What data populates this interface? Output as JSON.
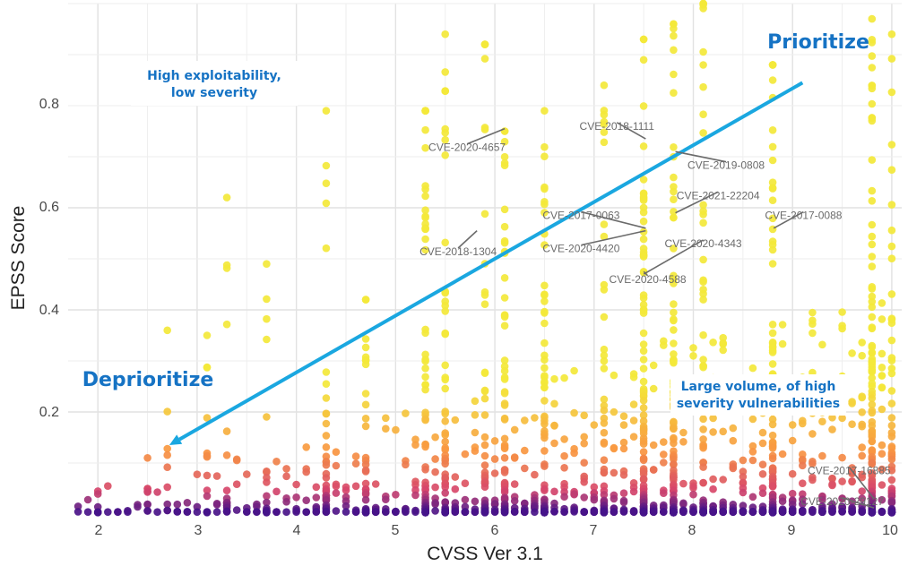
{
  "chart_data": {
    "type": "scatter",
    "xlabel": "CVSS Ver 3.1",
    "ylabel": "EPSS Score",
    "xlim": [
      1.7,
      10.1
    ],
    "ylim": [
      0,
      1.0
    ],
    "x_ticks": [
      "2",
      "3",
      "4",
      "5",
      "6",
      "7",
      "8",
      "9",
      "10"
    ],
    "y_ticks": [
      "0.2",
      "0.4",
      "0.6",
      "0.8"
    ],
    "grid": true,
    "colors": {
      "low": "#3b0f8c",
      "mid": "#d6456c",
      "upper": "#f89441",
      "high": "#f3e83a",
      "arrow": "#1aa7e0",
      "label": "#1673c4"
    },
    "regions": {
      "prioritize": "Prioritize",
      "deprioritize": "Deprioritize",
      "high_exploit_line1": "High exploitability,",
      "high_exploit_line2": "low severity",
      "large_volume_line1": "Large volume, of high",
      "large_volume_line2": "severity vulnerabilities"
    },
    "arrow": {
      "from": [
        9.1,
        0.845
      ],
      "to": [
        2.72,
        0.135
      ]
    },
    "annotations": [
      {
        "text": "CVE-2020-4657",
        "point": [
          6.1,
          0.755
        ],
        "label_at": [
          5.72,
          0.718
        ]
      },
      {
        "text": "CVE-2018-1111",
        "point": [
          7.52,
          0.735
        ],
        "label_at": [
          7.23,
          0.76
        ]
      },
      {
        "text": "CVE-2019-0808",
        "point": [
          7.82,
          0.71
        ],
        "label_at": [
          8.33,
          0.683
        ]
      },
      {
        "text": "CVE-2021-22204",
        "point": [
          7.82,
          0.59
        ],
        "label_at": [
          8.25,
          0.624
        ]
      },
      {
        "text": "CVE-2017-0063",
        "point": [
          7.52,
          0.56
        ],
        "label_at": [
          6.87,
          0.585
        ]
      },
      {
        "text": "CVE-2017-0088",
        "point": [
          8.81,
          0.56
        ],
        "label_at": [
          9.11,
          0.585
        ]
      },
      {
        "text": "CVE-2018-1304",
        "point": [
          5.82,
          0.555
        ],
        "label_at": [
          5.63,
          0.514
        ]
      },
      {
        "text": "CVE-2020-4420",
        "point": [
          7.52,
          0.555
        ],
        "label_at": [
          6.87,
          0.52
        ]
      },
      {
        "text": "CVE-2020-4343",
        "point": [
          7.5,
          0.47
        ],
        "label_at": [
          8.1,
          0.53
        ]
      },
      {
        "text": "CVE-2020-4588",
        "point": [
          7.5,
          0.475
        ],
        "label_at": [
          7.54,
          0.46
        ]
      },
      {
        "text": "CVE-2017-16885",
        "point": [
          9.82,
          0.03
        ],
        "label_at": [
          9.57,
          0.085
        ]
      },
      {
        "text": "CVE-2020-29127",
        "point": [
          9.82,
          0.012
        ],
        "label_at": [
          9.5,
          0.025
        ]
      }
    ],
    "series_summary": [
      {
        "x": 2.0,
        "n": 4,
        "max": 0.045
      },
      {
        "x": 2.5,
        "n": 6,
        "max": 0.11
      },
      {
        "x": 2.7,
        "n": 6,
        "max": 0.36
      },
      {
        "x": 3.1,
        "n": 10,
        "max": 0.35
      },
      {
        "x": 3.3,
        "n": 12,
        "max": 0.62
      },
      {
        "x": 3.7,
        "n": 12,
        "max": 0.49
      },
      {
        "x": 4.3,
        "n": 30,
        "max": 0.79
      },
      {
        "x": 4.7,
        "n": 30,
        "max": 0.42
      },
      {
        "x": 5.3,
        "n": 60,
        "max": 0.79
      },
      {
        "x": 5.5,
        "n": 50,
        "max": 0.94
      },
      {
        "x": 5.9,
        "n": 40,
        "max": 0.92
      },
      {
        "x": 6.1,
        "n": 50,
        "max": 0.75
      },
      {
        "x": 6.5,
        "n": 60,
        "max": 0.79
      },
      {
        "x": 7.1,
        "n": 40,
        "max": 0.84
      },
      {
        "x": 7.5,
        "n": 100,
        "max": 0.93
      },
      {
        "x": 7.8,
        "n": 100,
        "max": 0.96
      },
      {
        "x": 8.1,
        "n": 50,
        "max": 1.0
      },
      {
        "x": 8.8,
        "n": 80,
        "max": 0.88
      },
      {
        "x": 9.8,
        "n": 120,
        "max": 0.97
      },
      {
        "x": 10.0,
        "n": 40,
        "max": 0.94
      }
    ]
  }
}
